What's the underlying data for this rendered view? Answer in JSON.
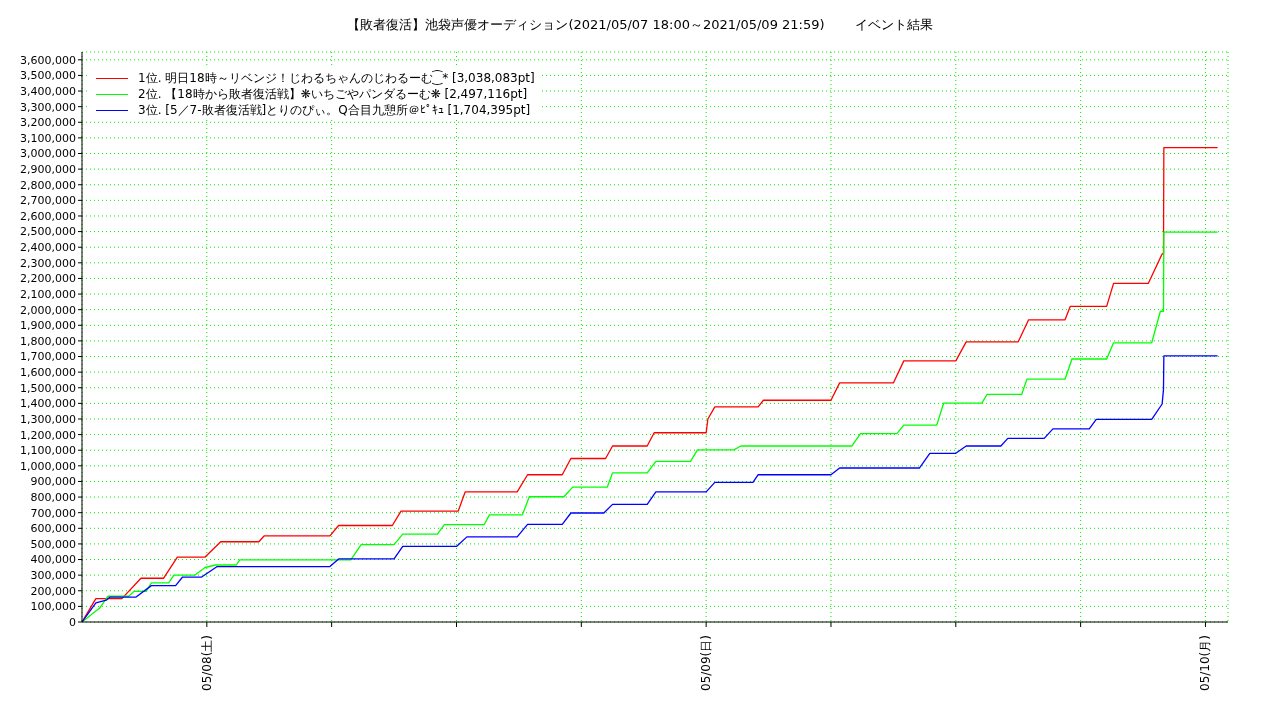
{
  "chart_data": {
    "type": "line",
    "title": "【敗者復活】池袋声優オーディション(2021/05/07 18:00～2021/05/09 21:59)",
    "subtitle": "イベント結果",
    "xlim": [
      "2021-05-07T18:00",
      "2021-05-10T01:05"
    ],
    "xticks": [
      {
        "value": "2021-05-08T00:00",
        "label": "05/08(土)"
      },
      {
        "value": "2021-05-08T06:00",
        "label": null
      },
      {
        "value": "2021-05-08T12:00",
        "label": null
      },
      {
        "value": "2021-05-08T18:00",
        "label": null
      },
      {
        "value": "2021-05-09T00:00",
        "label": "05/09(日)"
      },
      {
        "value": "2021-05-09T06:00",
        "label": null
      },
      {
        "value": "2021-05-09T12:00",
        "label": null
      },
      {
        "value": "2021-05-09T18:00",
        "label": null
      },
      {
        "value": "2021-05-10T00:00",
        "label": "05/10(月)"
      }
    ],
    "ylim": [
      0,
      3650000
    ],
    "yticks": [
      0,
      {
        "value": 100000,
        "label": "100,000"
      },
      {
        "value": 200000,
        "label": "200,000"
      },
      {
        "value": 300000,
        "label": "300,000"
      },
      {
        "value": 400000,
        "label": "400,000"
      },
      {
        "value": 500000,
        "label": "500,000"
      },
      {
        "value": 600000,
        "label": "600,000"
      },
      {
        "value": 700000,
        "label": "700,000"
      },
      {
        "value": 800000,
        "label": "800,000"
      },
      {
        "value": 900000,
        "label": "900,000"
      },
      {
        "value": 1000000,
        "label": "1,000,000"
      },
      {
        "value": 1100000,
        "label": "1,100,000"
      },
      {
        "value": 1200000,
        "label": "1,200,000"
      },
      {
        "value": 1300000,
        "label": "1,300,000"
      },
      {
        "value": 1400000,
        "label": "1,400,000"
      },
      {
        "value": 1500000,
        "label": "1,500,000"
      },
      {
        "value": 1600000,
        "label": "1,600,000"
      },
      {
        "value": 1700000,
        "label": "1,700,000"
      },
      {
        "value": 1800000,
        "label": "1,800,000"
      },
      {
        "value": 1900000,
        "label": "1,900,000"
      },
      {
        "value": 2000000,
        "label": "2,000,000"
      },
      {
        "value": 2100000,
        "label": "2,100,000"
      },
      {
        "value": 2200000,
        "label": "2,200,000"
      },
      {
        "value": 2300000,
        "label": "2,300,000"
      },
      {
        "value": 2400000,
        "label": "2,400,000"
      },
      {
        "value": 2500000,
        "label": "2,500,000"
      },
      {
        "value": 2600000,
        "label": "2,600,000"
      },
      {
        "value": 2700000,
        "label": "2,700,000"
      },
      {
        "value": 2800000,
        "label": "2,800,000"
      },
      {
        "value": 2900000,
        "label": "2,900,000"
      },
      {
        "value": 3000000,
        "label": "3,000,000"
      },
      {
        "value": 3100000,
        "label": "3,100,000"
      },
      {
        "value": 3200000,
        "label": "3,200,000"
      },
      {
        "value": 3300000,
        "label": "3,300,000"
      },
      {
        "value": 3400000,
        "label": "3,400,000"
      },
      {
        "value": 3500000,
        "label": "3,500,000"
      },
      {
        "value": 3600000,
        "label": "3,600,000"
      }
    ],
    "grid": true,
    "legend": "top left",
    "marker": "none",
    "line_style": "solid",
    "series": [
      {
        "name": "1位. 明日18時～リベンジ！じわるちゃんのじわるーむ⁐* [3,038,083pt]",
        "color": "#ff0000",
        "x": [
          "2021-05-07T18:00",
          "2021-05-07T18:40",
          "2021-05-07T19:55",
          "2021-05-07T20:50",
          "2021-05-07T21:55",
          "2021-05-07T22:35",
          "2021-05-07T23:55",
          "2021-05-08T00:40",
          "2021-05-08T02:30",
          "2021-05-08T02:45",
          "2021-05-08T05:55",
          "2021-05-08T06:20",
          "2021-05-08T08:55",
          "2021-05-08T09:20",
          "2021-05-08T12:05",
          "2021-05-08T12:25",
          "2021-05-08T14:55",
          "2021-05-08T15:25",
          "2021-05-08T17:05",
          "2021-05-08T17:30",
          "2021-05-08T19:10",
          "2021-05-08T19:30",
          "2021-05-08T21:10",
          "2021-05-08T21:30",
          "2021-05-09T00:00",
          "2021-05-09T00:05",
          "2021-05-09T00:25",
          "2021-05-09T02:30",
          "2021-05-09T02:45",
          "2021-05-09T06:00",
          "2021-05-09T06:25",
          "2021-05-09T09:00",
          "2021-05-09T09:30",
          "2021-05-09T12:00",
          "2021-05-09T12:30",
          "2021-05-09T15:00",
          "2021-05-09T15:30",
          "2021-05-09T17:15",
          "2021-05-09T17:30",
          "2021-05-09T19:15",
          "2021-05-09T19:35",
          "2021-05-09T21:15",
          "2021-05-09T21:55",
          "2021-05-09T21:59",
          "2021-05-09T22:00",
          "2021-05-10T00:35"
        ],
        "values": [
          0,
          150000,
          150000,
          280000,
          280000,
          416000,
          416000,
          514000,
          514000,
          551000,
          551000,
          618000,
          618000,
          710000,
          710000,
          833000,
          833000,
          943000,
          943000,
          1047000,
          1047000,
          1127000,
          1127000,
          1212000,
          1212000,
          1300000,
          1378000,
          1378000,
          1420000,
          1420000,
          1531000,
          1531000,
          1672000,
          1672000,
          1794000,
          1794000,
          1935000,
          1935000,
          2021000,
          2021000,
          2168000,
          2168000,
          2357000,
          2357000,
          3038083,
          3038083
        ]
      },
      {
        "name": "2位. 【18時から敗者復活戦】❋いちごやパンダるーむ❋ [2,497,116pt]",
        "color": "#00ff00",
        "x": [
          "2021-05-07T18:00",
          "2021-05-07T18:40",
          "2021-05-07T18:50",
          "2021-05-07T19:15",
          "2021-05-07T20:15",
          "2021-05-07T20:30",
          "2021-05-07T21:05",
          "2021-05-07T21:20",
          "2021-05-07T22:10",
          "2021-05-07T22:25",
          "2021-05-07T23:25",
          "2021-05-07T23:55",
          "2021-05-08T00:25",
          "2021-05-08T01:25",
          "2021-05-08T01:35",
          "2021-05-08T06:55",
          "2021-05-08T07:25",
          "2021-05-08T09:00",
          "2021-05-08T09:25",
          "2021-05-08T11:05",
          "2021-05-08T11:25",
          "2021-05-08T13:20",
          "2021-05-08T13:35",
          "2021-05-08T15:10",
          "2021-05-08T15:30",
          "2021-05-08T17:10",
          "2021-05-08T17:35",
          "2021-05-08T19:15",
          "2021-05-08T19:30",
          "2021-05-08T21:10",
          "2021-05-08T21:35",
          "2021-05-08T23:15",
          "2021-05-08T23:35",
          "2021-05-09T01:20",
          "2021-05-09T01:40",
          "2021-05-09T07:00",
          "2021-05-09T07:25",
          "2021-05-09T09:10",
          "2021-05-09T09:30",
          "2021-05-09T11:05",
          "2021-05-09T11:25",
          "2021-05-09T13:15",
          "2021-05-09T13:30",
          "2021-05-09T15:10",
          "2021-05-09T15:25",
          "2021-05-09T17:15",
          "2021-05-09T17:35",
          "2021-05-09T19:15",
          "2021-05-09T19:35",
          "2021-05-09T21:25",
          "2021-05-09T21:50",
          "2021-05-09T21:59",
          "2021-05-09T22:00",
          "2021-05-10T00:35"
        ],
        "values": [
          0,
          70000,
          86000,
          165000,
          165000,
          196000,
          196000,
          251000,
          251000,
          300000,
          300000,
          349000,
          365000,
          365000,
          398000,
          398000,
          496000,
          496000,
          563000,
          563000,
          624000,
          624000,
          686000,
          686000,
          802000,
          802000,
          864000,
          864000,
          955000,
          955000,
          1029000,
          1029000,
          1102000,
          1102000,
          1127000,
          1127000,
          1206000,
          1206000,
          1261000,
          1261000,
          1402000,
          1402000,
          1457000,
          1457000,
          1555000,
          1555000,
          1684000,
          1684000,
          1788000,
          1788000,
          1990000,
          1990000,
          2497116,
          2497116
        ]
      },
      {
        "name": "3位. [5／7-敗者復活戦]とりのぴぃ。Q合目九憩所＠ﾋﾟｷｭ [1,704,395pt]",
        "color": "#0000ff",
        "x": [
          "2021-05-07T18:00",
          "2021-05-07T18:40",
          "2021-05-07T19:10",
          "2021-05-07T19:20",
          "2021-05-07T20:35",
          "2021-05-07T21:20",
          "2021-05-07T22:30",
          "2021-05-07T22:50",
          "2021-05-07T23:45",
          "2021-05-08T00:30",
          "2021-05-08T05:55",
          "2021-05-08T06:20",
          "2021-05-08T09:00",
          "2021-05-08T09:25",
          "2021-05-08T12:00",
          "2021-05-08T12:30",
          "2021-05-08T14:55",
          "2021-05-08T15:25",
          "2021-05-08T17:05",
          "2021-05-08T17:30",
          "2021-05-08T19:05",
          "2021-05-08T19:30",
          "2021-05-08T21:10",
          "2021-05-08T21:35",
          "2021-05-09T00:00",
          "2021-05-09T00:25",
          "2021-05-09T02:15",
          "2021-05-09T02:30",
          "2021-05-09T06:00",
          "2021-05-09T06:25",
          "2021-05-09T10:15",
          "2021-05-09T10:45",
          "2021-05-09T12:00",
          "2021-05-09T12:30",
          "2021-05-09T14:10",
          "2021-05-09T14:30",
          "2021-05-09T16:15",
          "2021-05-09T16:40",
          "2021-05-09T18:25",
          "2021-05-09T18:45",
          "2021-05-09T21:25",
          "2021-05-09T21:55",
          "2021-05-09T21:59",
          "2021-05-09T22:00",
          "2021-05-10T00:35"
        ],
        "values": [
          0,
          122000,
          140000,
          159000,
          159000,
          233000,
          233000,
          288000,
          288000,
          355000,
          355000,
          404000,
          404000,
          484000,
          484000,
          545000,
          545000,
          625000,
          625000,
          698000,
          698000,
          753000,
          753000,
          833000,
          833000,
          894000,
          894000,
          943000,
          943000,
          986000,
          986000,
          1080000,
          1080000,
          1127000,
          1127000,
          1176000,
          1176000,
          1237000,
          1237000,
          1298000,
          1298000,
          1396000,
          1490000,
          1704395,
          1704395
        ]
      }
    ]
  }
}
